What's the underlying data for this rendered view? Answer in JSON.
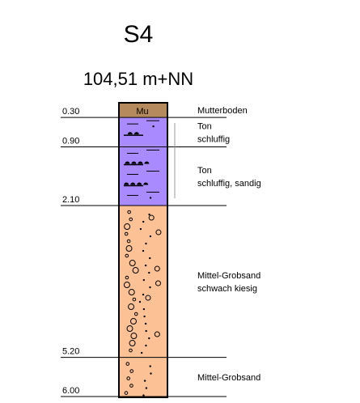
{
  "title": "S4",
  "elevation": "104,51 m+NN",
  "column_abbreviation": "Mu",
  "colors": {
    "mutterboden": "#b58a5c",
    "ton": "#a98aff",
    "sand": "#fcc296",
    "line": "#000000"
  },
  "layers": [
    {
      "top": 0.0,
      "bottom": 0.3,
      "depth_label": "0.30",
      "soil": "mutterboden",
      "pattern": "none",
      "description": [
        "Mutterboden"
      ]
    },
    {
      "top": 0.3,
      "bottom": 0.9,
      "depth_label": "0.90",
      "soil": "ton",
      "pattern": "clay",
      "description": [
        "Ton",
        "schluffig"
      ]
    },
    {
      "top": 0.9,
      "bottom": 2.1,
      "depth_label": "2.10",
      "soil": "ton",
      "pattern": "clay",
      "description": [
        "Ton",
        "schluffig, sandig"
      ]
    },
    {
      "top": 2.1,
      "bottom": 5.2,
      "depth_label": "5.20",
      "soil": "sand",
      "pattern": "gravel",
      "description": [
        "Mittel-Grobsand",
        "schwach kiesig"
      ]
    },
    {
      "top": 5.2,
      "bottom": 6.0,
      "depth_label": "6.00",
      "soil": "sand",
      "pattern": "sand",
      "description": [
        "Mittel-Grobsand"
      ]
    }
  ]
}
